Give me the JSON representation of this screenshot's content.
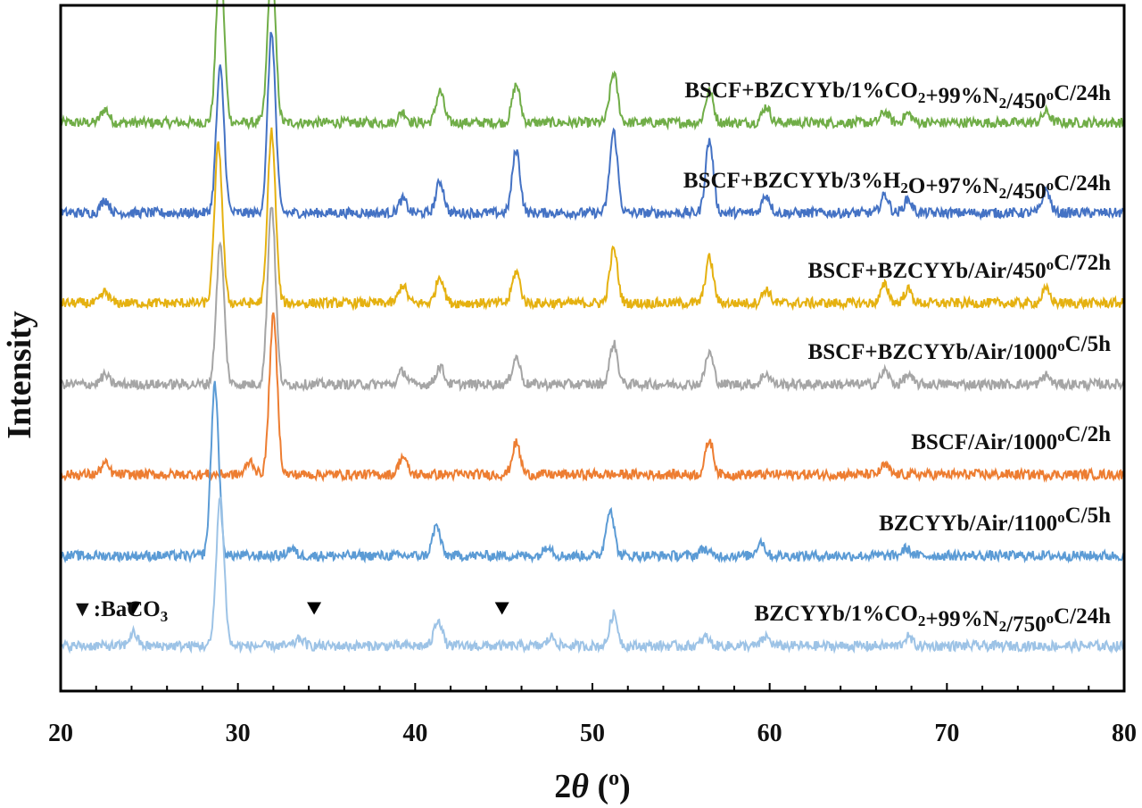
{
  "chart_data": {
    "type": "line",
    "title": "",
    "xlabel_prefix": "2",
    "xlabel_symbol": "θ",
    "xlabel_unit": " (o)",
    "ylabel": "Intensity",
    "xlim": [
      20,
      80
    ],
    "x_ticks": [
      20,
      30,
      40,
      50,
      60,
      70,
      80
    ],
    "y_ticks_shown": false,
    "grid": false,
    "marker_legend": {
      "symbol": "▼",
      "text": ":BaCO",
      "subscript": "3"
    },
    "baco3_markers_x": [
      24.1,
      34.3,
      44.9
    ],
    "series": [
      {
        "label_parts": [
          {
            "t": "BSCF+BZCYYb/1%CO"
          },
          {
            "t": "2",
            "sub": true
          },
          {
            "t": "+99%N"
          },
          {
            "t": "2",
            "sub": true
          },
          {
            "t": "/450"
          },
          {
            "t": "o",
            "sup": true
          },
          {
            "t": "C/24h"
          }
        ],
        "color": "#70ad47",
        "baseline_intensity": 6.3,
        "peaks": [
          [
            22.5,
            0.15
          ],
          [
            29.0,
            1.85
          ],
          [
            31.9,
            1.75
          ],
          [
            39.3,
            0.12
          ],
          [
            41.4,
            0.35
          ],
          [
            45.7,
            0.42
          ],
          [
            51.2,
            0.55
          ],
          [
            56.6,
            0.35
          ],
          [
            59.8,
            0.18
          ],
          [
            66.5,
            0.12
          ],
          [
            67.8,
            0.1
          ],
          [
            75.6,
            0.12
          ]
        ]
      },
      {
        "label_parts": [
          {
            "t": "BSCF+BZCYYb/3%H"
          },
          {
            "t": "2",
            "sub": true
          },
          {
            "t": "O+97%N"
          },
          {
            "t": "2",
            "sub": true
          },
          {
            "t": "/450"
          },
          {
            "t": "o",
            "sup": true
          },
          {
            "t": "C/24h"
          }
        ],
        "color": "#4472c4",
        "baseline_intensity": 5.3,
        "peaks": [
          [
            22.5,
            0.15
          ],
          [
            29.0,
            1.6
          ],
          [
            31.9,
            2.0
          ],
          [
            39.3,
            0.15
          ],
          [
            41.4,
            0.35
          ],
          [
            45.7,
            0.7
          ],
          [
            51.2,
            0.9
          ],
          [
            56.6,
            0.8
          ],
          [
            59.8,
            0.2
          ],
          [
            66.5,
            0.2
          ],
          [
            67.8,
            0.15
          ],
          [
            75.6,
            0.25
          ]
        ]
      },
      {
        "label_parts": [
          {
            "t": "BSCF+BZCYYb/Air/450"
          },
          {
            "t": "o",
            "sup": true
          },
          {
            "t": "C/72h"
          }
        ],
        "color": "#e5b110",
        "baseline_intensity": 4.3,
        "peaks": [
          [
            22.5,
            0.12
          ],
          [
            28.9,
            1.75
          ],
          [
            31.9,
            1.9
          ],
          [
            39.3,
            0.2
          ],
          [
            41.4,
            0.3
          ],
          [
            45.7,
            0.35
          ],
          [
            51.2,
            0.6
          ],
          [
            56.6,
            0.5
          ],
          [
            59.8,
            0.15
          ],
          [
            66.5,
            0.2
          ],
          [
            67.8,
            0.15
          ],
          [
            75.6,
            0.15
          ]
        ]
      },
      {
        "label_parts": [
          {
            "t": "BSCF+BZCYYb/Air/1000"
          },
          {
            "t": "o",
            "sup": true
          },
          {
            "t": "C/5h"
          }
        ],
        "color": "#a5a5a5",
        "baseline_intensity": 3.4,
        "peaks": [
          [
            22.5,
            0.1
          ],
          [
            29.0,
            1.55
          ],
          [
            31.9,
            2.0
          ],
          [
            39.3,
            0.15
          ],
          [
            41.4,
            0.2
          ],
          [
            45.7,
            0.3
          ],
          [
            51.2,
            0.45
          ],
          [
            56.6,
            0.35
          ],
          [
            59.8,
            0.12
          ],
          [
            66.5,
            0.15
          ],
          [
            67.8,
            0.1
          ],
          [
            75.6,
            0.1
          ]
        ]
      },
      {
        "label_parts": [
          {
            "t": "BSCF/Air/1000"
          },
          {
            "t": "o",
            "sup": true
          },
          {
            "t": "C/2h"
          }
        ],
        "color": "#ed7d31",
        "baseline_intensity": 2.4,
        "peaks": [
          [
            22.5,
            0.12
          ],
          [
            30.7,
            0.15
          ],
          [
            32.0,
            1.75
          ],
          [
            39.3,
            0.2
          ],
          [
            45.7,
            0.35
          ],
          [
            56.6,
            0.38
          ],
          [
            66.5,
            0.1
          ]
        ]
      },
      {
        "label_parts": [
          {
            "t": "BZCYYb/Air/1100"
          },
          {
            "t": "o",
            "sup": true
          },
          {
            "t": "C/5h"
          }
        ],
        "color": "#5b9bd5",
        "baseline_intensity": 1.5,
        "peaks": [
          [
            28.7,
            1.9
          ],
          [
            33.0,
            0.08
          ],
          [
            41.2,
            0.33
          ],
          [
            47.5,
            0.12
          ],
          [
            51.0,
            0.53
          ],
          [
            56.3,
            0.08
          ],
          [
            59.5,
            0.16
          ],
          [
            67.7,
            0.08
          ]
        ]
      },
      {
        "label_parts": [
          {
            "t": "BZCYYb/1%CO"
          },
          {
            "t": "2",
            "sub": true
          },
          {
            "t": "+99%N"
          },
          {
            "t": "2",
            "sub": true
          },
          {
            "t": "/750"
          },
          {
            "t": "o",
            "sup": true
          },
          {
            "t": "C/24h"
          }
        ],
        "color": "#9dc3e6",
        "baseline_intensity": 0.5,
        "peaks": [
          [
            24.1,
            0.15
          ],
          [
            29.0,
            1.65
          ],
          [
            33.5,
            0.08
          ],
          [
            41.3,
            0.3
          ],
          [
            47.7,
            0.1
          ],
          [
            51.2,
            0.35
          ],
          [
            56.4,
            0.1
          ],
          [
            59.8,
            0.1
          ],
          [
            67.8,
            0.1
          ]
        ]
      }
    ]
  }
}
